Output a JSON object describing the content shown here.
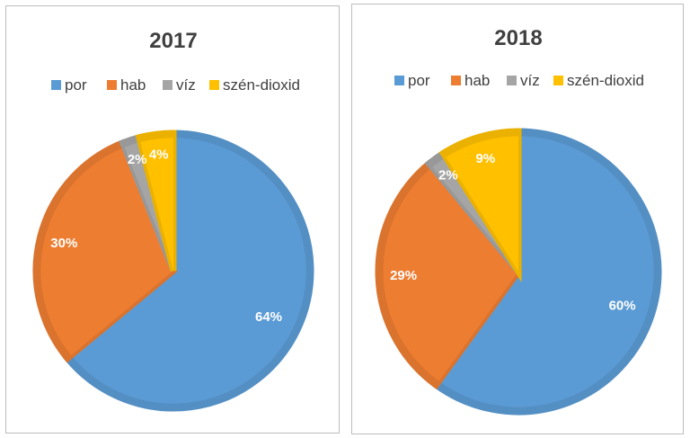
{
  "chart_data": [
    {
      "type": "pie",
      "title": "2017",
      "categories": [
        "por",
        "hab",
        "víz",
        "szén-dioxid"
      ],
      "values": [
        64,
        30,
        2,
        4
      ],
      "data_labels": [
        "64%",
        "30%",
        "2%",
        "4%"
      ],
      "unit": "%",
      "legend": "top"
    },
    {
      "type": "pie",
      "title": "2018",
      "categories": [
        "por",
        "hab",
        "víz",
        "szén-dioxid"
      ],
      "values": [
        60,
        29,
        2,
        9
      ],
      "data_labels": [
        "60%",
        "29%",
        "2%",
        "9%"
      ],
      "unit": "%",
      "legend": "top"
    }
  ],
  "colors": {
    "por": "#5b9bd5",
    "hab": "#ed7d31",
    "víz": "#a5a5a5",
    "szén-dioxid": "#ffc000"
  }
}
